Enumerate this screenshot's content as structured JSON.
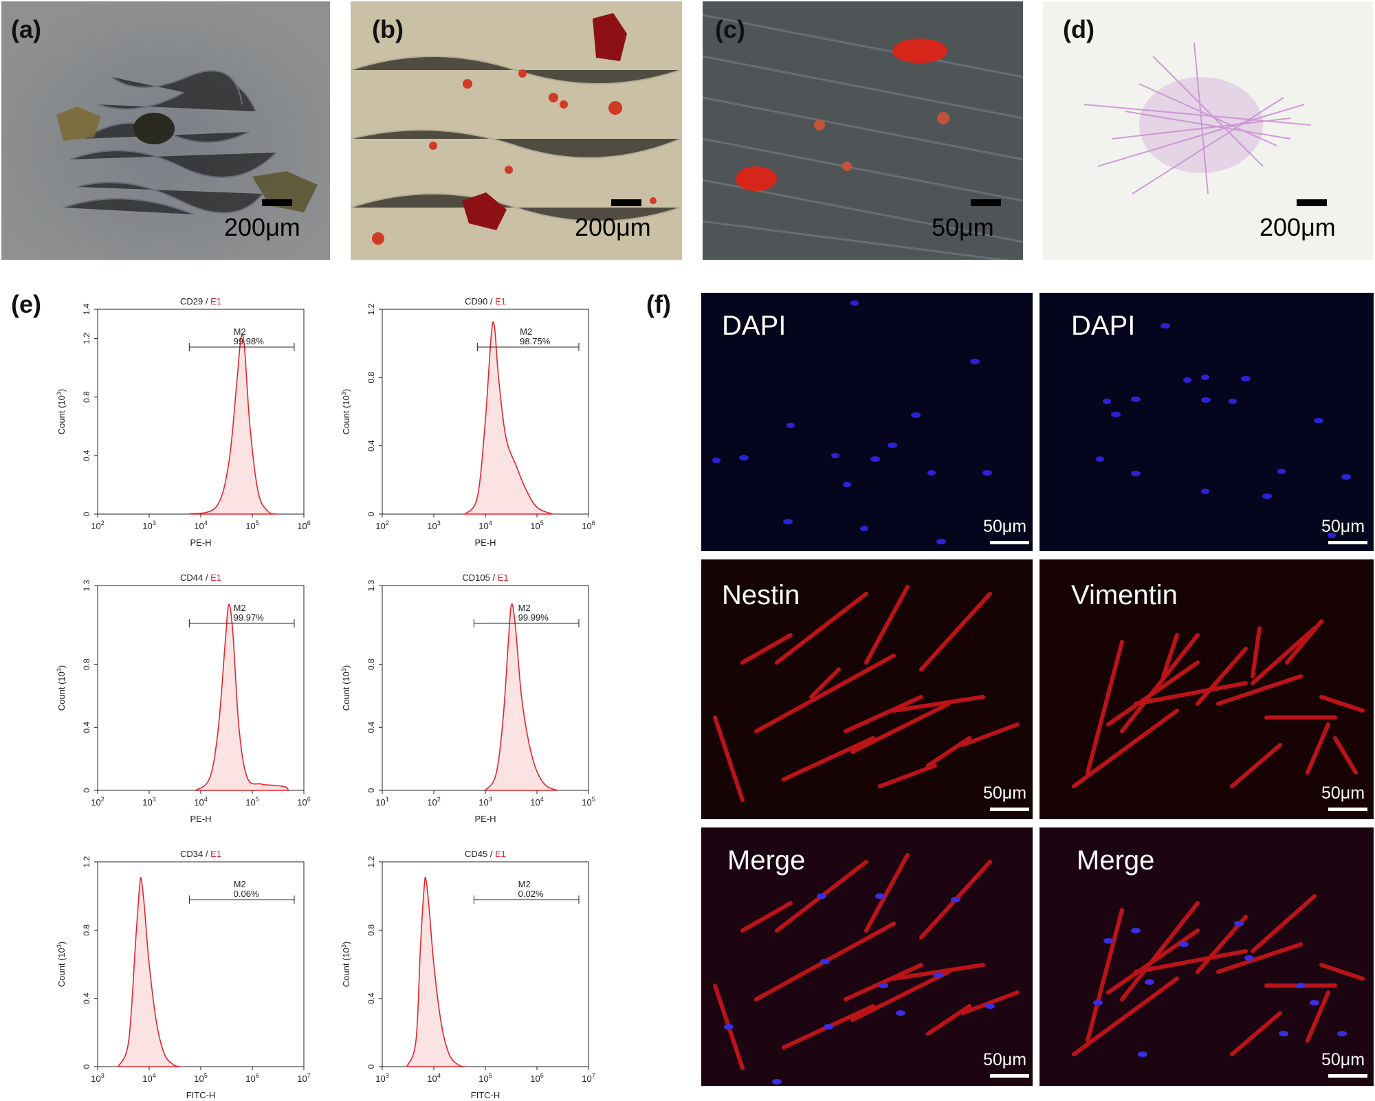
{
  "panels": {
    "a": {
      "label": "(a)",
      "scale": "200μm"
    },
    "b": {
      "label": "(b)",
      "scale": "200μm"
    },
    "c": {
      "label": "(c)",
      "scale": "50μm"
    },
    "d": {
      "label": "(d)",
      "scale": "200μm"
    },
    "e": {
      "label": "(e)"
    },
    "f": {
      "label": "(f)"
    }
  },
  "flow_common": {
    "ylabel": "Count (10",
    "ylabel_exp": "3",
    "ylabel_close": ")",
    "gate_name": "M2",
    "sep": " / ",
    "e1": "E1"
  },
  "chart_data": [
    {
      "type": "area",
      "marker": "CD29",
      "xlabel": "PE-H",
      "xscale": "log",
      "xlim": [
        100,
        1000000
      ],
      "xticks": [
        "10^2",
        "10^3",
        "10^4",
        "10^5",
        "10^6"
      ],
      "ylim": [
        0,
        1.4
      ],
      "yticks": [
        "0",
        "0.4",
        "0.8",
        "1.2",
        "1.4"
      ],
      "gate_pct": "99.98%",
      "gate_range": [
        6000,
        650000
      ],
      "series": [
        {
          "x": [
            6000,
            20000,
            35000,
            50000,
            60000,
            70000,
            90000,
            130000,
            200000,
            300000
          ],
          "y": [
            0,
            0.05,
            0.35,
            0.9,
            1.2,
            1.15,
            0.6,
            0.15,
            0.02,
            0
          ]
        }
      ]
    },
    {
      "type": "area",
      "marker": "CD90",
      "xlabel": "PE-H",
      "xscale": "log",
      "xlim": [
        100,
        1000000
      ],
      "xticks": [
        "10^2",
        "10^3",
        "10^4",
        "10^5",
        "10^6"
      ],
      "ylim": [
        0,
        1.2
      ],
      "yticks": [
        "0",
        "0.4",
        "0.8",
        "1.2"
      ],
      "gate_pct": "98.75%",
      "gate_range": [
        7000,
        650000
      ],
      "series": [
        {
          "x": [
            4000,
            7000,
            10000,
            13000,
            15000,
            18000,
            25000,
            40000,
            60000,
            100000,
            200000
          ],
          "y": [
            0,
            0.1,
            0.55,
            1.05,
            1.1,
            0.8,
            0.45,
            0.28,
            0.15,
            0.04,
            0
          ]
        }
      ]
    },
    {
      "type": "area",
      "marker": "CD44",
      "xlabel": "PE-H",
      "xscale": "log",
      "xlim": [
        100,
        1000000
      ],
      "xticks": [
        "10^2",
        "10^3",
        "10^4",
        "10^5",
        "10^6"
      ],
      "ylim": [
        0,
        1.3
      ],
      "yticks": [
        "0",
        "0.4",
        "0.8",
        "1.3"
      ],
      "gate_pct": "99.97%",
      "gate_range": [
        6000,
        650000
      ],
      "series": [
        {
          "x": [
            8000,
            15000,
            22000,
            30000,
            35000,
            42000,
            55000,
            80000,
            150000,
            300000,
            450000,
            500000
          ],
          "y": [
            0,
            0.08,
            0.4,
            0.95,
            1.18,
            1.0,
            0.4,
            0.08,
            0.04,
            0.03,
            0.02,
            0
          ]
        }
      ]
    },
    {
      "type": "area",
      "marker": "CD105",
      "xlabel": "PE-H",
      "xscale": "log",
      "xlim": [
        10,
        100000
      ],
      "xticks": [
        "10^1",
        "10^2",
        "10^3",
        "10^4",
        "10^5"
      ],
      "ylim": [
        0,
        1.3
      ],
      "yticks": [
        "0",
        "0.4",
        "0.8",
        "1.3"
      ],
      "gate_pct": "99.99%",
      "gate_range": [
        600,
        65000
      ],
      "series": [
        {
          "x": [
            1000,
            1600,
            2200,
            2800,
            3200,
            3800,
            5000,
            7000,
            10000,
            15000,
            25000
          ],
          "y": [
            0,
            0.1,
            0.45,
            0.95,
            1.18,
            1.05,
            0.6,
            0.3,
            0.12,
            0.03,
            0
          ]
        }
      ]
    },
    {
      "type": "area",
      "marker": "CD34",
      "xlabel": "FITC-H",
      "xscale": "log",
      "xlim": [
        1000,
        10000000
      ],
      "xticks": [
        "10^3",
        "10^4",
        "10^5",
        "10^6",
        "10^7"
      ],
      "ylim": [
        0,
        1.2
      ],
      "yticks": [
        "0",
        "0.4",
        "0.8",
        "1.2"
      ],
      "gate_pct": "0.06%",
      "gate_range": [
        60000,
        6500000
      ],
      "series": [
        {
          "x": [
            2500,
            4000,
            5500,
            6500,
            7000,
            8000,
            10000,
            14000,
            20000,
            30000,
            40000
          ],
          "y": [
            0,
            0.15,
            0.75,
            1.05,
            1.1,
            0.95,
            0.6,
            0.25,
            0.07,
            0.01,
            0
          ]
        }
      ]
    },
    {
      "type": "area",
      "marker": "CD45",
      "xlabel": "FITC-H",
      "xscale": "log",
      "xlim": [
        1000,
        10000000
      ],
      "xticks": [
        "10^3",
        "10^4",
        "10^5",
        "10^6",
        "10^7"
      ],
      "ylim": [
        0,
        1.2
      ],
      "yticks": [
        "0",
        "0.4",
        "0.8",
        "1.2"
      ],
      "gate_pct": "0.02%",
      "gate_range": [
        60000,
        6500000
      ],
      "series": [
        {
          "x": [
            3000,
            4500,
            5500,
            6500,
            7000,
            8000,
            10000,
            14000,
            20000,
            30000,
            40000
          ],
          "y": [
            0,
            0.15,
            0.7,
            1.05,
            1.1,
            0.95,
            0.6,
            0.25,
            0.07,
            0.01,
            0
          ]
        }
      ]
    }
  ],
  "immuno": {
    "col1": {
      "top": "DAPI",
      "mid": "Nestin",
      "bottom": "Merge"
    },
    "col2": {
      "top": "DAPI",
      "mid": "Vimentin",
      "bottom": "Merge"
    },
    "scale": "50μm"
  },
  "colors": {
    "histogram_line": "#e0262f",
    "histogram_fill": "#fbe3e4",
    "e1_red": "#e0262f"
  }
}
